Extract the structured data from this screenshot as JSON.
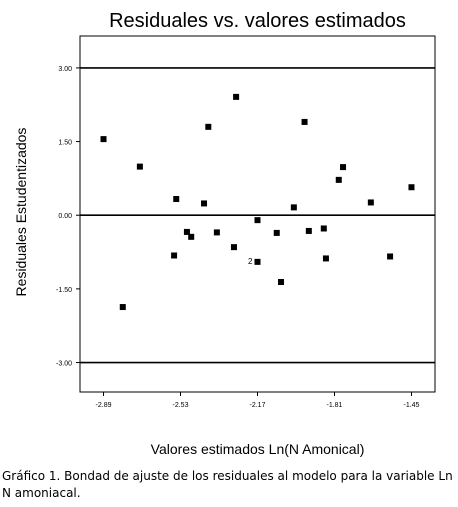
{
  "chart_data": {
    "type": "scatter",
    "title": "Residuales vs. valores estimados",
    "xlabel": "Valores estimados Ln(N Amonical)",
    "ylabel": "Residuales Estudentizados",
    "xlim": [
      -3.0,
      -1.34
    ],
    "ylim": [
      -3.6,
      3.65
    ],
    "x_ticks": [
      "-2.89",
      "-2.53",
      "-2.17",
      "-1.81",
      "-1.45"
    ],
    "y_ticks": [
      "3.00",
      "1.50",
      "0.00",
      "-1.50",
      "-3.00"
    ],
    "reference_lines": [
      3.0,
      0.0,
      -3.0
    ],
    "grid": false,
    "points": [
      {
        "x": -2.89,
        "y": 1.55
      },
      {
        "x": -2.8,
        "y": -1.87
      },
      {
        "x": -2.72,
        "y": 0.99
      },
      {
        "x": -2.56,
        "y": -0.82
      },
      {
        "x": -2.55,
        "y": 0.33
      },
      {
        "x": -2.5,
        "y": -0.34
      },
      {
        "x": -2.48,
        "y": -0.44
      },
      {
        "x": -2.42,
        "y": 0.24
      },
      {
        "x": -2.4,
        "y": 1.8
      },
      {
        "x": -2.36,
        "y": -0.35
      },
      {
        "x": -2.28,
        "y": -0.65
      },
      {
        "x": -2.27,
        "y": 2.41
      },
      {
        "x": -2.17,
        "y": -0.1
      },
      {
        "x": -2.17,
        "y": -0.95,
        "label": "2"
      },
      {
        "x": -2.08,
        "y": -0.36
      },
      {
        "x": -2.06,
        "y": -1.36
      },
      {
        "x": -2.0,
        "y": 0.16
      },
      {
        "x": -1.95,
        "y": 1.9
      },
      {
        "x": -1.93,
        "y": -0.32
      },
      {
        "x": -1.86,
        "y": -0.27
      },
      {
        "x": -1.85,
        "y": -0.88
      },
      {
        "x": -1.79,
        "y": 0.72
      },
      {
        "x": -1.77,
        "y": 0.98
      },
      {
        "x": -1.64,
        "y": 0.26
      },
      {
        "x": -1.55,
        "y": -0.84
      },
      {
        "x": -1.45,
        "y": 0.57
      }
    ]
  },
  "caption": "Gráfico 1. Bondad de ajuste de los residuales al modelo para la variable Ln N amoniacal."
}
